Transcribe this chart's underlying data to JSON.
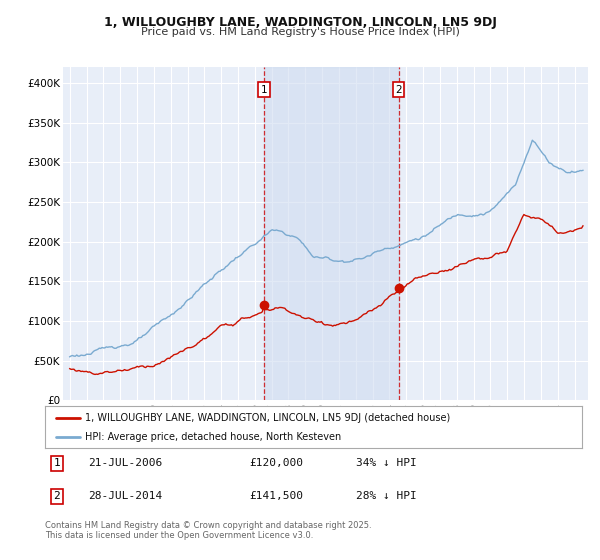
{
  "title": "1, WILLOUGHBY LANE, WADDINGTON, LINCOLN, LN5 9DJ",
  "subtitle": "Price paid vs. HM Land Registry's House Price Index (HPI)",
  "background_color": "#ffffff",
  "plot_bg_color": "#e8eef8",
  "shade_color": "#d0ddf0",
  "grid_color": "#ffffff",
  "hpi_color": "#7aaad0",
  "price_color": "#cc1100",
  "marker1_label": "21-JUL-2006",
  "marker1_price": "£120,000",
  "marker1_pct": "34% ↓ HPI",
  "marker1_year": 2006.54,
  "marker1_value": 120000,
  "marker2_label": "28-JUL-2014",
  "marker2_price": "£141,500",
  "marker2_pct": "28% ↓ HPI",
  "marker2_year": 2014.54,
  "marker2_value": 141500,
  "legend1": "1, WILLOUGHBY LANE, WADDINGTON, LINCOLN, LN5 9DJ (detached house)",
  "legend2": "HPI: Average price, detached house, North Kesteven",
  "footer": "Contains HM Land Registry data © Crown copyright and database right 2025.\nThis data is licensed under the Open Government Licence v3.0.",
  "ylim": [
    0,
    420000
  ],
  "yticks": [
    0,
    50000,
    100000,
    150000,
    200000,
    250000,
    300000,
    350000,
    400000
  ],
  "ytick_labels": [
    "£0",
    "£50K",
    "£100K",
    "£150K",
    "£200K",
    "£250K",
    "£300K",
    "£350K",
    "£400K"
  ],
  "xstart": 1995,
  "xend": 2025.5
}
